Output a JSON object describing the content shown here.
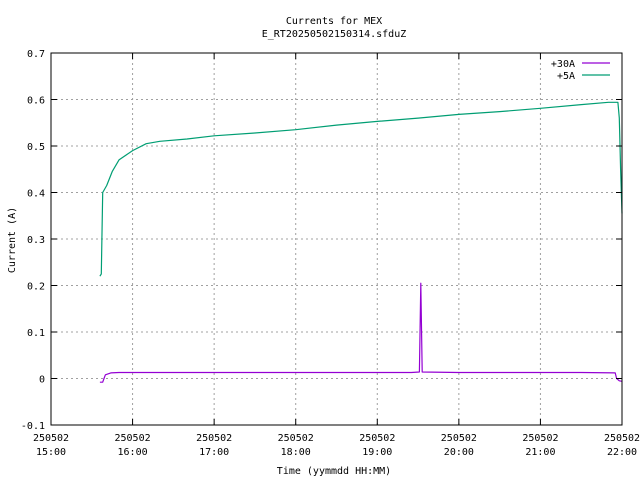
{
  "chart_data": {
    "type": "line",
    "title": "Currents for MEX",
    "subtitle": "E_RT20250502150314.sfduZ",
    "xlabel": "Time (yymmdd HH:MM)",
    "ylabel": "Current (A)",
    "ylim": [
      -0.1,
      0.7
    ],
    "yticks": [
      "-0.1",
      "0",
      "0.1",
      "0.2",
      "0.3",
      "0.4",
      "0.5",
      "0.6",
      "0.7"
    ],
    "xlim": [
      "2025-05-02 15:00",
      "2025-05-02 22:00"
    ],
    "xticks": [
      {
        "date": "250502",
        "time": "15:00"
      },
      {
        "date": "250502",
        "time": "16:00"
      },
      {
        "date": "250502",
        "time": "17:00"
      },
      {
        "date": "250502",
        "time": "18:00"
      },
      {
        "date": "250502",
        "time": "19:00"
      },
      {
        "date": "250502",
        "time": "20:00"
      },
      {
        "date": "250502",
        "time": "21:00"
      },
      {
        "date": "250502",
        "time": "22:00"
      }
    ],
    "grid": true,
    "legend_position": "top-right",
    "series": [
      {
        "name": "+30A",
        "color": "#9400d3",
        "points": [
          [
            "15:36",
            -0.008
          ],
          [
            "15:38",
            -0.008
          ],
          [
            "15:39",
            0.0
          ],
          [
            "15:40",
            0.008
          ],
          [
            "15:44",
            0.012
          ],
          [
            "15:50",
            0.013
          ],
          [
            "16:30",
            0.013
          ],
          [
            "17:30",
            0.013
          ],
          [
            "18:30",
            0.013
          ],
          [
            "19:25",
            0.013
          ],
          [
            "19:31",
            0.014
          ],
          [
            "19:32",
            0.205
          ],
          [
            "19:33",
            0.014
          ],
          [
            "20:00",
            0.013
          ],
          [
            "21:00",
            0.013
          ],
          [
            "21:30",
            0.013
          ],
          [
            "21:55",
            0.012
          ],
          [
            "21:56",
            0.0
          ],
          [
            "21:58",
            -0.005
          ],
          [
            "22:00",
            -0.006
          ]
        ]
      },
      {
        "name": "+5A",
        "color": "#009e73",
        "points": [
          [
            "15:36",
            0.22
          ],
          [
            "15:37",
            0.225
          ],
          [
            "15:38",
            0.4
          ],
          [
            "15:41",
            0.415
          ],
          [
            "15:45",
            0.445
          ],
          [
            "15:50",
            0.47
          ],
          [
            "16:00",
            0.49
          ],
          [
            "16:10",
            0.505
          ],
          [
            "16:20",
            0.51
          ],
          [
            "16:40",
            0.515
          ],
          [
            "17:00",
            0.522
          ],
          [
            "17:30",
            0.528
          ],
          [
            "18:00",
            0.535
          ],
          [
            "18:30",
            0.545
          ],
          [
            "19:00",
            0.553
          ],
          [
            "19:30",
            0.56
          ],
          [
            "20:00",
            0.568
          ],
          [
            "20:30",
            0.574
          ],
          [
            "21:00",
            0.581
          ],
          [
            "21:30",
            0.589
          ],
          [
            "21:50",
            0.594
          ],
          [
            "21:57",
            0.594
          ],
          [
            "21:58",
            0.56
          ],
          [
            "21:59",
            0.45
          ],
          [
            "22:00",
            0.355
          ]
        ]
      }
    ]
  }
}
